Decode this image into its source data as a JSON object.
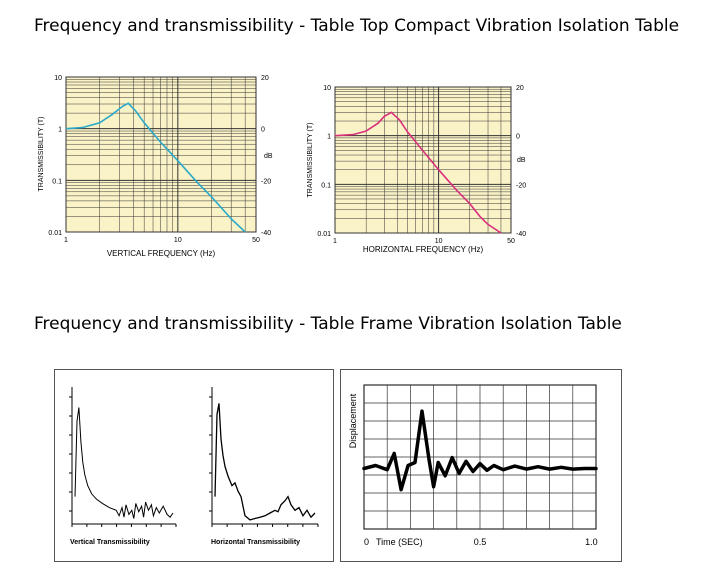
{
  "headings": {
    "top": "Frequency and transmissibility - Table Top Compact Vibration Isolation Table",
    "frame": "Frequency and transmissibility - Table Frame Vibration Isolation Table"
  },
  "colors": {
    "plot_background": "#fbf3c8",
    "grid": "#333333",
    "vertical_curve": "#2aa9c9",
    "horizontal_curve": "#d9307c",
    "frame_curve": "#000000"
  },
  "chart_data": [
    {
      "type": "line",
      "scale": "log-log",
      "ylabel": "TRANSMISSIBILITY (T)",
      "xlabel": "VERTICAL FREQUENCY (Hz)",
      "right_axis_label": "dB",
      "x_ticks": [
        "1",
        "10",
        "50"
      ],
      "y_ticks": [
        "10",
        "1",
        "0.1",
        "0.01"
      ],
      "right_ticks": [
        "20",
        "0",
        "-20",
        "-40"
      ],
      "xlim": [
        1,
        50
      ],
      "ylim": [
        0.01,
        10
      ],
      "grid": true,
      "series": [
        {
          "x": [
            1,
            1.4,
            2,
            2.6,
            3.2,
            3.6,
            4.2,
            5,
            7,
            10,
            15,
            20,
            25,
            30,
            40
          ],
          "y": [
            1.0,
            1.05,
            1.3,
            1.9,
            2.7,
            3.1,
            2.2,
            1.3,
            0.55,
            0.24,
            0.09,
            0.048,
            0.028,
            0.018,
            0.01
          ]
        }
      ]
    },
    {
      "type": "line",
      "scale": "log-log",
      "ylabel": "TRANSMISSIBILITY (T)",
      "xlabel": "HORIZONTAL FREQUENCY (Hz)",
      "right_axis_label": "dB",
      "x_ticks": [
        "1",
        "10",
        "50"
      ],
      "y_ticks": [
        "10",
        "1",
        "0.1",
        "0.01"
      ],
      "right_ticks": [
        "20",
        "0",
        "-20",
        "-40"
      ],
      "xlim": [
        1,
        50
      ],
      "ylim": [
        0.01,
        10
      ],
      "grid": true,
      "series": [
        {
          "x": [
            1,
            1.5,
            2,
            2.6,
            3,
            3.5,
            4.2,
            5,
            7,
            10,
            15,
            20,
            25,
            30,
            40
          ],
          "y": [
            1.0,
            1.05,
            1.25,
            1.8,
            2.5,
            3.0,
            2.1,
            1.2,
            0.5,
            0.2,
            0.075,
            0.04,
            0.022,
            0.015,
            0.01
          ]
        }
      ]
    },
    {
      "type": "line",
      "xlabel": "Vertical Transmissibility",
      "series": [
        {
          "x": [
            0,
            0.02,
            0.04,
            0.06,
            0.08,
            0.1,
            0.13,
            0.17,
            0.22,
            0.28,
            0.35,
            0.42,
            0.45,
            0.48,
            0.5,
            0.52,
            0.55,
            0.58,
            0.6,
            0.62,
            0.65,
            0.68,
            0.7,
            0.72,
            0.75,
            0.78,
            0.8,
            0.83,
            0.86,
            0.9,
            0.94,
            0.97,
            1.0
          ],
          "y": [
            0.2,
            0.75,
            0.85,
            0.6,
            0.45,
            0.36,
            0.28,
            0.22,
            0.18,
            0.15,
            0.12,
            0.1,
            0.06,
            0.12,
            0.05,
            0.14,
            0.07,
            0.1,
            0.04,
            0.15,
            0.09,
            0.13,
            0.05,
            0.16,
            0.1,
            0.14,
            0.06,
            0.12,
            0.08,
            0.13,
            0.07,
            0.05,
            0.08
          ]
        }
      ]
    },
    {
      "type": "line",
      "xlabel": "Horizontal Transmissibility",
      "series": [
        {
          "x": [
            0,
            0.02,
            0.04,
            0.06,
            0.08,
            0.1,
            0.13,
            0.17,
            0.2,
            0.23,
            0.26,
            0.3,
            0.35,
            0.4,
            0.45,
            0.5,
            0.55,
            0.6,
            0.63,
            0.66,
            0.7,
            0.73,
            0.76,
            0.8,
            0.84,
            0.88,
            0.92,
            0.96,
            1.0
          ],
          "y": [
            0.2,
            0.8,
            0.88,
            0.62,
            0.5,
            0.42,
            0.35,
            0.28,
            0.3,
            0.24,
            0.2,
            0.06,
            0.03,
            0.04,
            0.05,
            0.06,
            0.08,
            0.1,
            0.09,
            0.14,
            0.17,
            0.2,
            0.14,
            0.1,
            0.12,
            0.06,
            0.1,
            0.05,
            0.08
          ]
        }
      ]
    },
    {
      "type": "line",
      "ylabel": "Displacement",
      "xlabel": "Time (SEC)",
      "x_ticks": [
        "0",
        "0.5",
        "1.0"
      ],
      "xlim": [
        0,
        1.0
      ],
      "grid": true,
      "series": [
        {
          "x": [
            0,
            0.05,
            0.1,
            0.13,
            0.16,
            0.19,
            0.22,
            0.25,
            0.28,
            0.3,
            0.32,
            0.35,
            0.38,
            0.41,
            0.44,
            0.47,
            0.5,
            0.53,
            0.56,
            0.6,
            0.65,
            0.7,
            0.75,
            0.8,
            0.85,
            0.9,
            0.95,
            1.0
          ],
          "y": [
            0,
            0.05,
            -0.02,
            0.25,
            -0.35,
            0.05,
            0.1,
            0.95,
            0.15,
            -0.3,
            0.1,
            -0.12,
            0.18,
            -0.08,
            0.12,
            -0.05,
            0.08,
            -0.03,
            0.05,
            -0.02,
            0.04,
            -0.01,
            0.03,
            -0.01,
            0.02,
            -0.01,
            0.0,
            0.0
          ]
        }
      ]
    }
  ]
}
